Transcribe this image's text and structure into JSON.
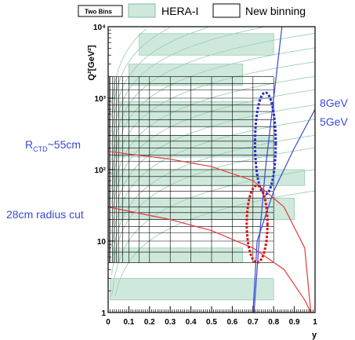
{
  "chart_data": {
    "type": "scatter",
    "xlabel": "y",
    "ylabel": "Q²[GeV²]",
    "xlim": [
      0,
      1
    ],
    "ylim": [
      1,
      10000
    ],
    "y_scale": "log",
    "x_ticks": [
      "0",
      "0.1",
      "0.2",
      "0.3",
      "0.4",
      "0.5",
      "0.6",
      "0.7",
      "0.8",
      "0.9",
      "1"
    ],
    "y_ticks": [
      {
        "value": 1,
        "label": "1"
      },
      {
        "value": 10,
        "label": "10"
      },
      {
        "value": 100,
        "label": "10²"
      },
      {
        "value": 1000,
        "label": "10³"
      },
      {
        "value": 10000,
        "label": "10⁴"
      }
    ],
    "legend": {
      "placement": "top",
      "entries": [
        {
          "label": "Two Bins",
          "style": "small-box"
        },
        {
          "label": "HERA-I",
          "style": "filled",
          "color": "#cfe8dc"
        },
        {
          "label": "New binning",
          "style": "open"
        }
      ]
    },
    "new_binning": {
      "y_edges": [
        0.005,
        0.01,
        0.02,
        0.03,
        0.04,
        0.05,
        0.07,
        0.1,
        0.15,
        0.2,
        0.3,
        0.4,
        0.5,
        0.6,
        0.7,
        0.8
      ],
      "q2_edges": [
        5,
        7,
        10,
        13,
        16,
        20,
        25,
        30,
        40,
        50,
        60,
        80,
        100,
        130,
        160,
        200,
        250,
        300,
        400,
        500,
        650,
        800,
        1000,
        1300,
        1600,
        2000
      ]
    },
    "hera1_bins": [
      {
        "y0": 0.01,
        "y1": 0.8,
        "q0": 1.5,
        "q1": 3
      },
      {
        "y0": 0.02,
        "y1": 0.65,
        "q0": 5,
        "q1": 8
      },
      {
        "y0": 0.05,
        "y1": 0.9,
        "q0": 20,
        "q1": 40
      },
      {
        "y0": 0.02,
        "y1": 0.95,
        "q0": 60,
        "q1": 100
      },
      {
        "y0": 0.03,
        "y1": 0.8,
        "q0": 150,
        "q1": 300
      },
      {
        "y0": 0.05,
        "y1": 0.7,
        "q0": 400,
        "q1": 900
      },
      {
        "y0": 0.1,
        "y1": 0.65,
        "q0": 1500,
        "q1": 3000
      },
      {
        "y0": 0.15,
        "y1": 0.8,
        "q0": 4000,
        "q1": 8000
      }
    ],
    "green_curves_x_intercepts": [
      0.0005,
      0.001,
      0.002,
      0.003,
      0.005,
      0.008,
      0.013,
      0.02,
      0.032,
      0.05,
      0.08,
      0.13,
      0.2,
      0.32,
      0.5
    ],
    "lines": [
      {
        "name": "8GeV",
        "color": "#3a49d8",
        "points": [
          [
            0.705,
            1
          ],
          [
            0.73,
            10
          ],
          [
            0.76,
            100
          ],
          [
            0.8,
            1000
          ],
          [
            0.84,
            10000
          ]
        ]
      },
      {
        "name": "5GeV",
        "color": "#3a49d8",
        "points": [
          [
            0.7,
            1
          ],
          [
            0.72,
            10
          ],
          [
            0.8,
            50
          ],
          [
            0.9,
            200
          ],
          [
            1.0,
            700
          ]
        ]
      },
      {
        "name": "R_CTD cut",
        "color": "#e23b3b",
        "points": [
          [
            0,
            180
          ],
          [
            0.3,
            140
          ],
          [
            0.5,
            110
          ],
          [
            0.7,
            70
          ],
          [
            0.85,
            30
          ],
          [
            0.95,
            8
          ],
          [
            0.98,
            1
          ]
        ]
      },
      {
        "name": "28cm radius cut",
        "color": "#e23b3b",
        "points": [
          [
            0,
            30
          ],
          [
            0.3,
            20
          ],
          [
            0.5,
            14
          ],
          [
            0.7,
            8
          ],
          [
            0.85,
            4
          ],
          [
            0.95,
            1.5
          ],
          [
            0.98,
            1
          ]
        ]
      }
    ],
    "ellipses": [
      {
        "color": "#2233cc",
        "cx": 0.76,
        "cy": 350,
        "rx": 0.05,
        "y_low": 45,
        "y_high": 1200
      },
      {
        "color": "#dd1111",
        "cx": 0.72,
        "cy": 18,
        "rx": 0.05,
        "y_low": 5,
        "y_high": 60
      }
    ]
  },
  "annotations": {
    "rctd_text": "R",
    "rctd_sub": "CTD",
    "rctd_rest": "~55cm",
    "cut_label": "28cm radius cut",
    "label_8gev": "8GeV",
    "label_5gev": "5GeV"
  },
  "colors": {
    "hera_fill": "#cfe8dc",
    "hera_stroke": "#7fbfa3",
    "blue": "#3a49d8",
    "red": "#e23b3b"
  }
}
